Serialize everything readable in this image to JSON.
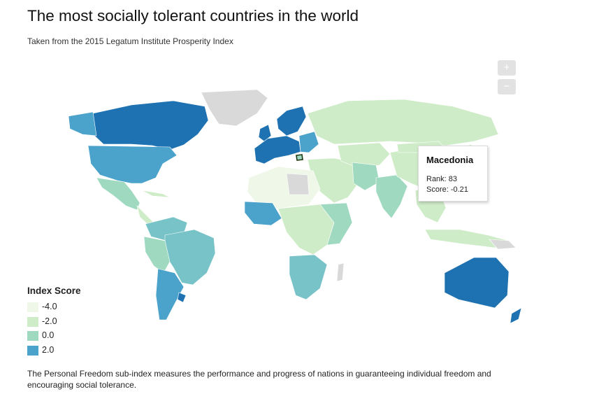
{
  "title": "The most socially tolerant countries in the world",
  "subtitle": "Taken from the 2015 Legatum Institute Prosperity Index",
  "zoom": {
    "in_label": "+",
    "out_label": "−"
  },
  "tooltip": {
    "country": "Macedonia",
    "rank_text": "Rank: 83",
    "score_text": "Score: -0.21"
  },
  "legend": {
    "title": "Index Score",
    "items": [
      {
        "label": "-4.0",
        "color": "#eef7e8"
      },
      {
        "label": "-2.0",
        "color": "#cfecc8"
      },
      {
        "label": "0.0",
        "color": "#9fd9c0"
      },
      {
        "label": "2.0",
        "color": "#4ba3cc"
      }
    ]
  },
  "colors": {
    "no_data": "#d9d9d9",
    "very_low": "#eef7e8",
    "low": "#cfecc8",
    "mid": "#9fd9c0",
    "teal": "#77c3c8",
    "high": "#4ba3cc",
    "top": "#1f72b2",
    "highlight_stroke": "#1f3a12"
  },
  "footnote": "The Personal Freedom sub-index measures the performance and progress of nations in guaranteeing individual freedom and encouraging social tolerance."
}
